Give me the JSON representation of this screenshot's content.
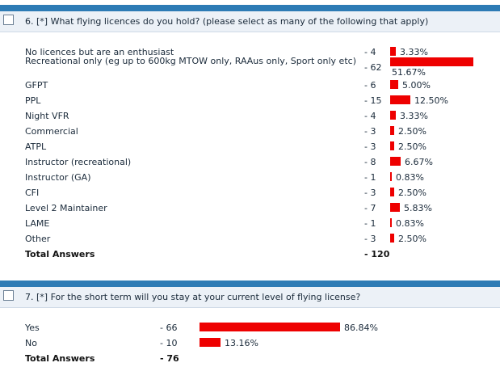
{
  "colors": {
    "header_band": "#2d7bb5",
    "bar": "#ee0000",
    "question_bg": "#ecf1f7"
  },
  "q6": {
    "title": "6.  [*] What flying licences do you hold? (please select as many of the following that apply)",
    "rows": [
      {
        "label": "No licences but are an enthusiast",
        "count": "- 4",
        "pct": "3.33%",
        "value": 3.33
      },
      {
        "label": "Recreational only (eg up to 600kg MTOW only, RAAus only, Sport only etc)",
        "count": "- 62",
        "pct": "51.67%",
        "value": 51.67
      },
      {
        "label": "GFPT",
        "count": "- 6",
        "pct": "5.00%",
        "value": 5.0
      },
      {
        "label": "PPL",
        "count": "- 15",
        "pct": "12.50%",
        "value": 12.5
      },
      {
        "label": "Night VFR",
        "count": "- 4",
        "pct": "3.33%",
        "value": 3.33
      },
      {
        "label": "Commercial",
        "count": "- 3",
        "pct": "2.50%",
        "value": 2.5
      },
      {
        "label": "ATPL",
        "count": "- 3",
        "pct": "2.50%",
        "value": 2.5
      },
      {
        "label": "Instructor (recreational)",
        "count": "- 8",
        "pct": "6.67%",
        "value": 6.67
      },
      {
        "label": "Instructor (GA)",
        "count": "- 1",
        "pct": "0.83%",
        "value": 0.83
      },
      {
        "label": "CFI",
        "count": "- 3",
        "pct": "2.50%",
        "value": 2.5
      },
      {
        "label": "Level 2 Maintainer",
        "count": "- 7",
        "pct": "5.83%",
        "value": 5.83
      },
      {
        "label": "LAME",
        "count": "- 1",
        "pct": "0.83%",
        "value": 0.83
      },
      {
        "label": "Other",
        "count": "- 3",
        "pct": "2.50%",
        "value": 2.5
      }
    ],
    "total_label": "Total Answers",
    "total_count": "- 120"
  },
  "q7": {
    "title": "7.  [*] For the short term will you stay at your current level of flying license?",
    "rows": [
      {
        "label": "Yes",
        "count": "-   66",
        "pct": "86.84%",
        "value": 86.84
      },
      {
        "label": "No",
        "count": "-   10",
        "pct": "13.16%",
        "value": 13.16
      }
    ],
    "total_label": "Total Answers",
    "total_count": "-   76"
  }
}
